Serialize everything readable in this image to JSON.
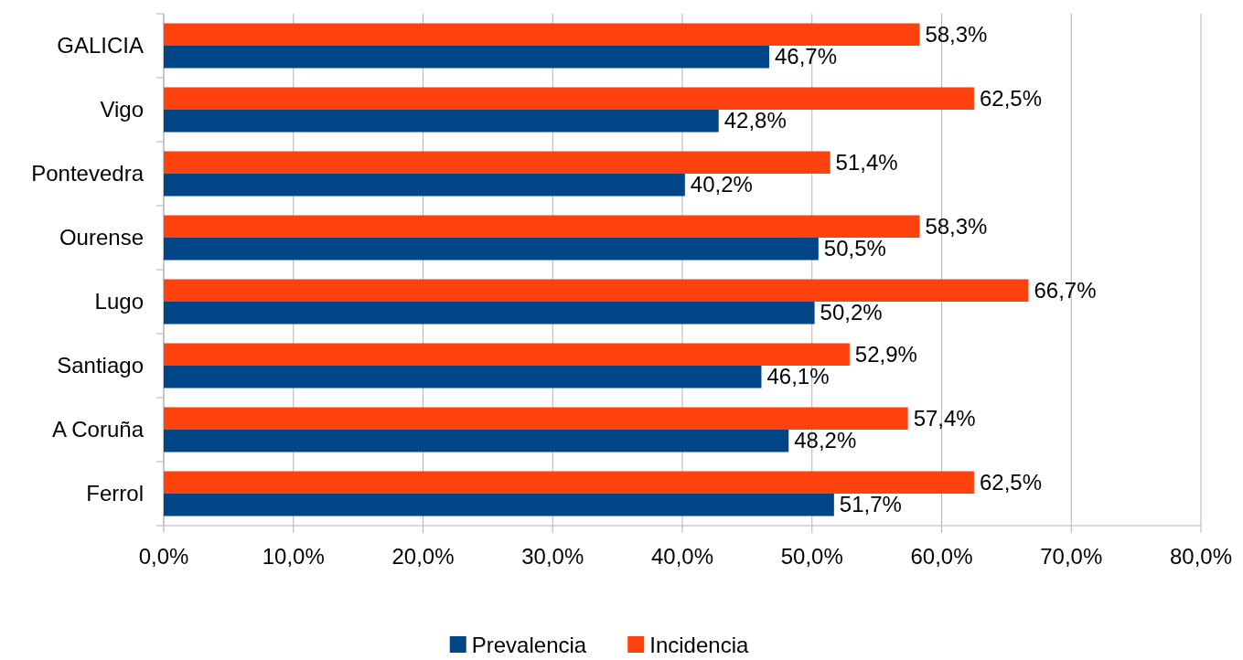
{
  "chart_data": {
    "type": "bar",
    "orientation": "horizontal",
    "categories": [
      "GALICIA",
      "Vigo",
      "Pontevedra",
      "Ourense",
      "Lugo",
      "Santiago",
      "A Coruña",
      "Ferrol"
    ],
    "series": [
      {
        "name": "Prevalencia",
        "color": "#004586",
        "values": [
          46.7,
          42.8,
          40.2,
          50.5,
          50.2,
          46.1,
          48.2,
          51.7
        ],
        "value_labels": [
          "46,7%",
          "42,8%",
          "40,2%",
          "50,5%",
          "50,2%",
          "46,1%",
          "48,2%",
          "51,7%"
        ]
      },
      {
        "name": "Incidencia",
        "color": "#ff420e",
        "values": [
          58.3,
          62.5,
          51.4,
          58.3,
          66.7,
          52.9,
          57.4,
          62.5
        ],
        "value_labels": [
          "58,3%",
          "62,5%",
          "51,4%",
          "58,3%",
          "66,7%",
          "52,9%",
          "57,4%",
          "62,5%"
        ]
      }
    ],
    "xlim": [
      0,
      80
    ],
    "xticks": [
      {
        "value": 0,
        "label": "0,0%"
      },
      {
        "value": 10,
        "label": "10,0%"
      },
      {
        "value": 20,
        "label": "20,0%"
      },
      {
        "value": 30,
        "label": "30,0%"
      },
      {
        "value": 40,
        "label": "40,0%"
      },
      {
        "value": 50,
        "label": "50,0%"
      },
      {
        "value": 60,
        "label": "60,0%"
      },
      {
        "value": 70,
        "label": "70,0%"
      },
      {
        "value": 80,
        "label": "80,0%"
      }
    ],
    "grid": "x",
    "legend": "bottom"
  }
}
